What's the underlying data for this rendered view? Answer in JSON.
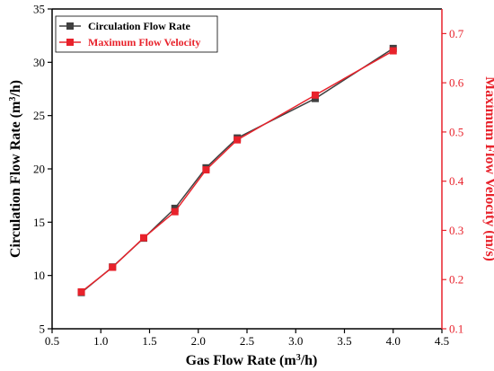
{
  "chart_data": {
    "type": "line",
    "colors": {
      "left": "#000000",
      "right": "#e8222b",
      "series1": "#404040",
      "series2": "#e8222b"
    },
    "x": {
      "label_main": "Gas Flow Rate (m",
      "label_sup": "3",
      "label_tail": "/h)",
      "lim": [
        0.5,
        4.5
      ],
      "ticks": [
        "0.5",
        "1.0",
        "1.5",
        "2.0",
        "2.5",
        "3.0",
        "3.5",
        "4.0",
        "4.5"
      ]
    },
    "y_left": {
      "label_main": "Circulation Flow Rate (m",
      "label_sup": "3",
      "label_tail": "/h)",
      "lim": [
        5,
        35
      ],
      "ticks": [
        "5",
        "10",
        "15",
        "20",
        "25",
        "30",
        "35"
      ]
    },
    "y_right": {
      "label": "Maximum Flow Velocity (m/s)",
      "lim": [
        0.1,
        0.75
      ],
      "ticks": [
        "0.1",
        "0.2",
        "0.3",
        "0.4",
        "0.5",
        "0.6",
        "0.7"
      ]
    },
    "legend": {
      "placement": "top-left"
    },
    "series": [
      {
        "name": "Circulation Flow Rate",
        "axis": "left",
        "x": [
          0.8,
          1.12,
          1.44,
          1.76,
          2.08,
          2.4,
          3.2,
          4.0
        ],
        "values": [
          8.4,
          10.8,
          13.5,
          16.3,
          20.1,
          22.9,
          26.6,
          31.3
        ]
      },
      {
        "name": "Maximum Flow Velocity",
        "axis": "right",
        "x": [
          0.8,
          1.12,
          1.44,
          1.76,
          2.08,
          2.4,
          3.2,
          4.0
        ],
        "values": [
          0.175,
          0.225,
          0.285,
          0.338,
          0.423,
          0.484,
          0.575,
          0.665
        ]
      }
    ]
  }
}
